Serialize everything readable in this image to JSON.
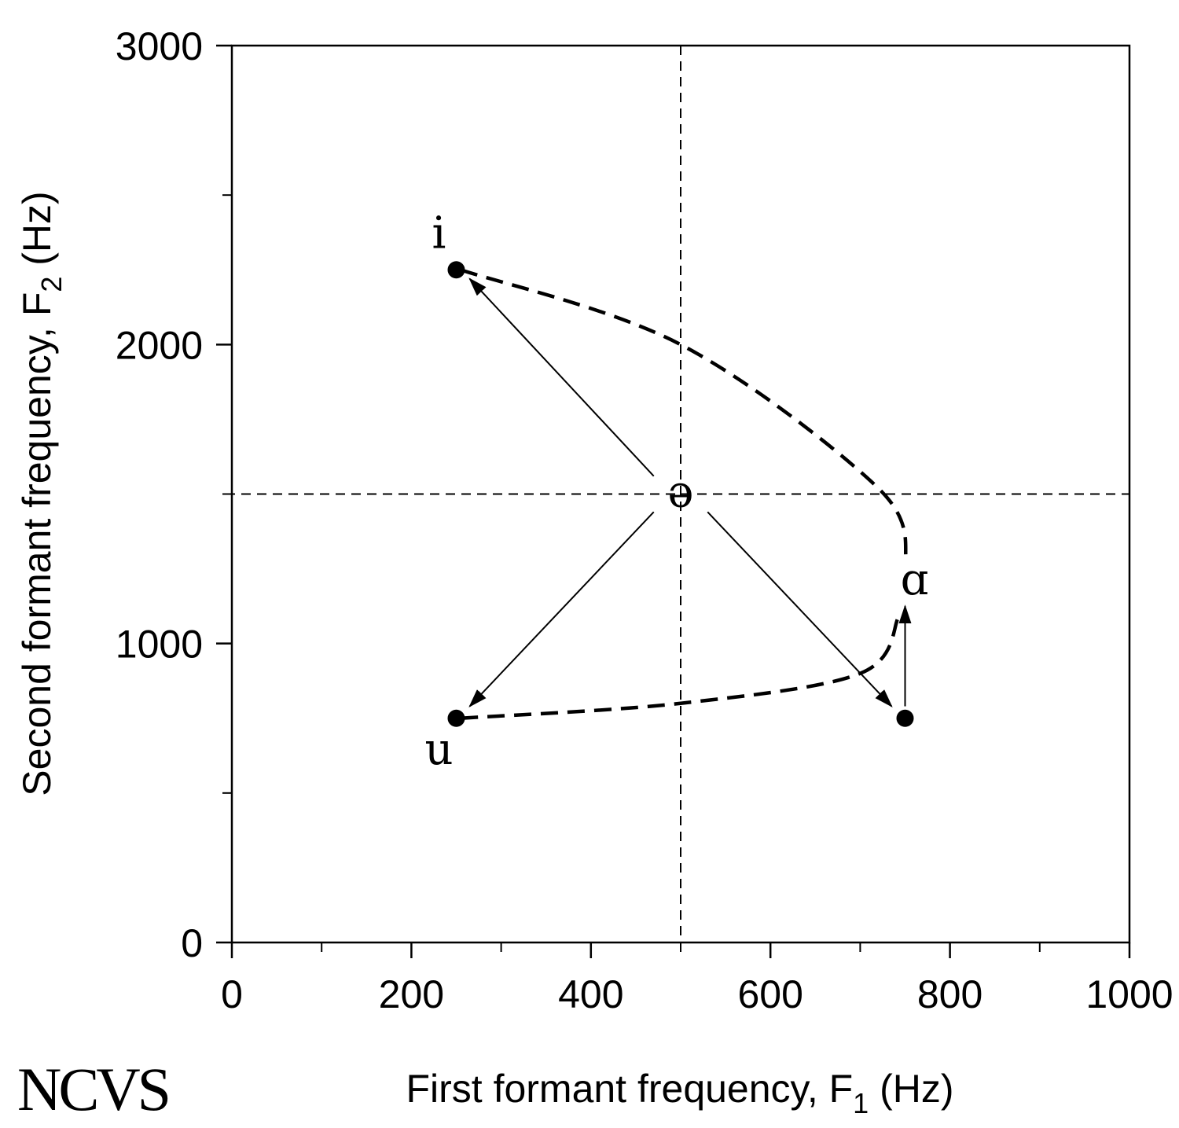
{
  "chart_data": {
    "type": "scatter",
    "xlabel": {
      "text": "First formant frequency, F",
      "sub": "1",
      "unit": " (Hz)"
    },
    "ylabel": {
      "text": "Second formant frequency, F",
      "sub": "2",
      "unit": " (Hz)"
    },
    "xlim": [
      0,
      1000
    ],
    "ylim": [
      0,
      3000
    ],
    "x_ticks": [
      0,
      200,
      400,
      600,
      800,
      1000
    ],
    "x_tick_labels": [
      "0",
      "200",
      "400",
      "600",
      "800",
      "1000"
    ],
    "x_minor_ticks": [
      100,
      300,
      500,
      700,
      900
    ],
    "y_ticks": [
      0,
      1000,
      2000,
      3000
    ],
    "y_tick_labels": [
      "0",
      "1000",
      "2000",
      "3000"
    ],
    "y_minor_ticks": [
      500,
      1500,
      2500
    ],
    "grid": false,
    "reference_lines": {
      "x": 500,
      "y": 1500
    },
    "center_label": {
      "symbol": "ə",
      "x": 500,
      "y": 1500
    },
    "points": [
      {
        "symbol": "i",
        "x": 250,
        "y": 2250
      },
      {
        "symbol": "u",
        "x": 250,
        "y": 750
      },
      {
        "symbol": "ɑ",
        "x": 750,
        "y": 750
      }
    ],
    "arrows": [
      {
        "from": [
          470,
          1560
        ],
        "to": [
          265,
          2220
        ]
      },
      {
        "from": [
          470,
          1440
        ],
        "to": [
          265,
          790
        ]
      },
      {
        "from": [
          530,
          1440
        ],
        "to": [
          735,
          790
        ]
      },
      {
        "from": [
          750,
          790
        ],
        "to": [
          750,
          1125
        ]
      }
    ],
    "dashed_curves": [
      {
        "name": "i-to-ɑ",
        "points": [
          [
            255,
            2250
          ],
          [
            500,
            2000
          ],
          [
            720,
            1520
          ],
          [
            752,
            1270
          ]
        ]
      },
      {
        "name": "u-to-ɑ",
        "points": [
          [
            255,
            750
          ],
          [
            500,
            800
          ],
          [
            700,
            900
          ],
          [
            743,
            1090
          ]
        ]
      }
    ]
  },
  "logo": {
    "text": "NCVS"
  }
}
